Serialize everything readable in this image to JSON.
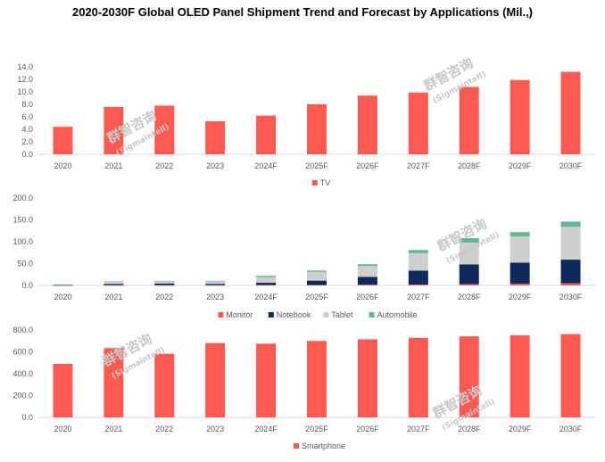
{
  "title": "2020-2030F Global OLED Panel Shipment Trend and Forecast by Applications (Mil.,)",
  "watermark": {
    "text": "群智咨询",
    "sub": "(Sigmaintell)"
  },
  "colors": {
    "tv": "#ff5a52",
    "monitor": "#ff5a52",
    "notebook": "#0e2a5c",
    "tablet": "#cfcfcf",
    "automobile": "#5fb893",
    "smartphone": "#ff5a52",
    "axis": "#d9d9d9"
  },
  "chart_data": [
    {
      "type": "bar",
      "categories": [
        "2020",
        "2021",
        "2022",
        "2023",
        "2024F",
        "2025F",
        "2026F",
        "2027F",
        "2028F",
        "2029F",
        "2030F"
      ],
      "yticks": [
        "0.0",
        "2.0",
        "4.0",
        "6.0",
        "8.0",
        "10.0",
        "12.0",
        "14.0"
      ],
      "ylim": [
        0,
        14
      ],
      "series": [
        {
          "name": "TV",
          "values": [
            4.4,
            7.6,
            7.8,
            5.3,
            6.2,
            8.0,
            9.4,
            9.9,
            10.8,
            11.9,
            13.2
          ]
        }
      ]
    },
    {
      "type": "bar",
      "stacked": true,
      "categories": [
        "2020",
        "2021",
        "2022",
        "2023",
        "2024F",
        "2025F",
        "2026F",
        "2027F",
        "2028F",
        "2029F",
        "2030F"
      ],
      "yticks": [
        "0.0",
        "50.0",
        "100.0",
        "150.0",
        "200.0"
      ],
      "ylim": [
        0,
        200
      ],
      "series": [
        {
          "name": "Monitor",
          "values": [
            0.2,
            0.5,
            0.5,
            0.5,
            1,
            1,
            1.5,
            2,
            3,
            4,
            5
          ]
        },
        {
          "name": "Notebook",
          "values": [
            0.5,
            3,
            4,
            3,
            5,
            10,
            18,
            32,
            45,
            48,
            54
          ]
        },
        {
          "name": "Tablet",
          "values": [
            1,
            5,
            5,
            6,
            13,
            20,
            25,
            40,
            50,
            60,
            75
          ]
        },
        {
          "name": "Automobile",
          "values": [
            0.5,
            1,
            1,
            1,
            3,
            3,
            4,
            7,
            10,
            10,
            12
          ]
        }
      ]
    },
    {
      "type": "bar",
      "categories": [
        "2020",
        "2021",
        "2022",
        "2023",
        "2024F",
        "2025F",
        "2026F",
        "2027F",
        "2028F",
        "2029F",
        "2030F"
      ],
      "yticks": [
        "0.0",
        "200.0",
        "400.0",
        "600.0",
        "800.0"
      ],
      "ylim": [
        0,
        800
      ],
      "series": [
        {
          "name": "Smartphone",
          "values": [
            490,
            635,
            582,
            680,
            675,
            700,
            715,
            728,
            742,
            752,
            762
          ]
        }
      ]
    }
  ]
}
